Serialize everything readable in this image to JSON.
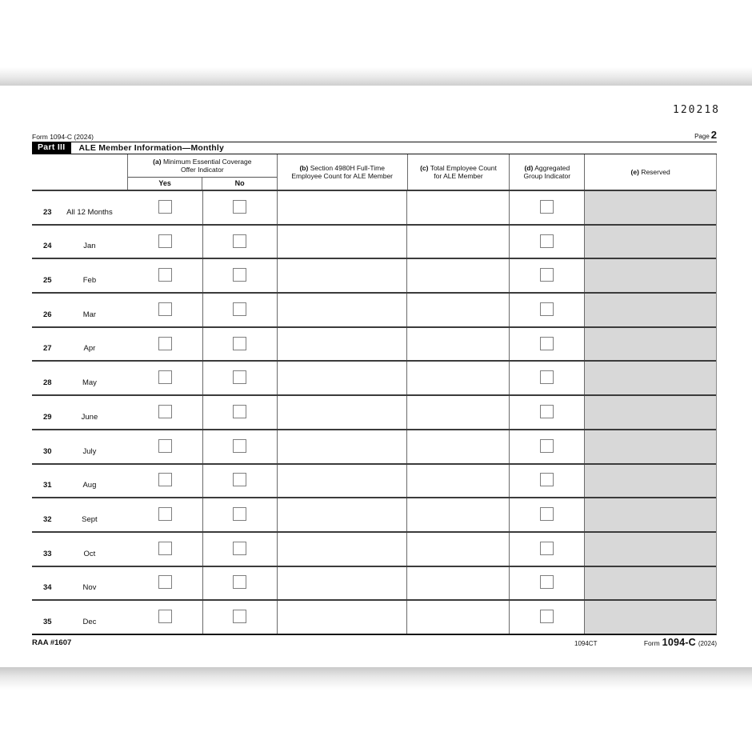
{
  "print_code": "120218",
  "header": {
    "form_id": "Form 1094-C (2024)",
    "page_label": "Page",
    "page_number": "2"
  },
  "part": {
    "label": "Part III",
    "title": "ALE Member Information—Monthly"
  },
  "table": {
    "columns": [
      {
        "prefix": "(a)",
        "line1": "Minimum Essential Coverage",
        "line2": "Offer Indicator",
        "sub_yes": "Yes",
        "sub_no": "No"
      },
      {
        "prefix": "(b)",
        "line1": "Section 4980H Full-Time",
        "line2": "Employee Count for ALE Member"
      },
      {
        "prefix": "(c)",
        "line1": "Total Employee Count",
        "line2": "for ALE Member"
      },
      {
        "prefix": "(d)",
        "line1": "Aggregated",
        "line2": "Group Indicator"
      },
      {
        "prefix": "(e)",
        "line1": "Reserved",
        "line2": ""
      }
    ],
    "rows": [
      {
        "num": "23",
        "label": "All 12 Months"
      },
      {
        "num": "24",
        "label": "Jan"
      },
      {
        "num": "25",
        "label": "Feb"
      },
      {
        "num": "26",
        "label": "Mar"
      },
      {
        "num": "27",
        "label": "Apr"
      },
      {
        "num": "28",
        "label": "May"
      },
      {
        "num": "29",
        "label": "June"
      },
      {
        "num": "30",
        "label": "July"
      },
      {
        "num": "31",
        "label": "Aug"
      },
      {
        "num": "32",
        "label": "Sept"
      },
      {
        "num": "33",
        "label": "Oct"
      },
      {
        "num": "34",
        "label": "Nov"
      },
      {
        "num": "35",
        "label": "Dec"
      }
    ],
    "checkboxes_checked": false
  },
  "footer": {
    "left": "RAA #1607",
    "code": "1094CT",
    "form_word": "Form",
    "form_number": "1094-C",
    "year": "(2024)"
  },
  "colors": {
    "reserved_fill": "#d8d8d8",
    "part_bar_bg": "#000000",
    "row_line": "#3b3b3b"
  }
}
